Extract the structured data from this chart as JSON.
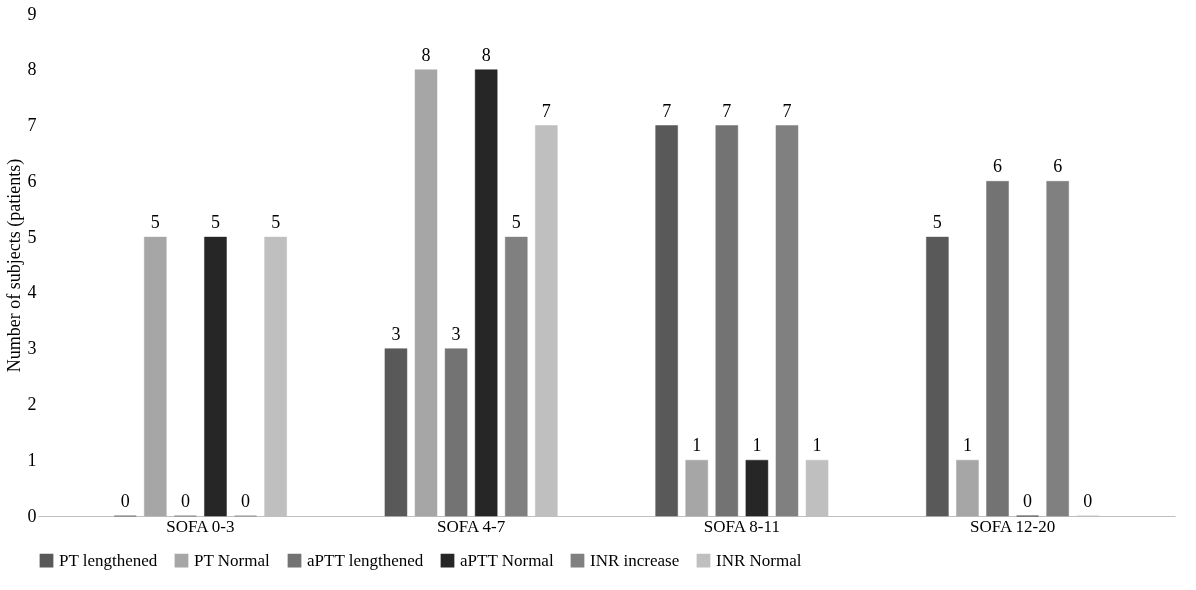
{
  "chart_data": {
    "type": "bar",
    "ylabel": "Number of subjects (patients)",
    "categories": [
      "SOFA 0-3",
      "SOFA 4-7",
      "SOFA 8-11",
      "SOFA 12-20"
    ],
    "series": [
      {
        "name": "PT lengthened",
        "color": "#595959",
        "values": [
          0,
          3,
          7,
          5
        ]
      },
      {
        "name": "PT Normal",
        "color": "#a6a6a6",
        "values": [
          5,
          8,
          1,
          1
        ]
      },
      {
        "name": "aPTT lengthened",
        "color": "#737373",
        "values": [
          0,
          3,
          7,
          6
        ]
      },
      {
        "name": "aPTT Normal",
        "color": "#262626",
        "values": [
          5,
          8,
          1,
          0
        ]
      },
      {
        "name": "INR increase",
        "color": "#808080",
        "values": [
          0,
          5,
          7,
          6
        ]
      },
      {
        "name": "INR Normal",
        "color": "#bfbfbf",
        "values": [
          5,
          7,
          1,
          0
        ]
      }
    ],
    "ylim": [
      0,
      9
    ],
    "yticks": [
      0,
      1,
      2,
      3,
      4,
      5,
      6,
      7,
      8,
      9
    ],
    "grid": false,
    "legend": "bottom",
    "data_labels": true
  }
}
